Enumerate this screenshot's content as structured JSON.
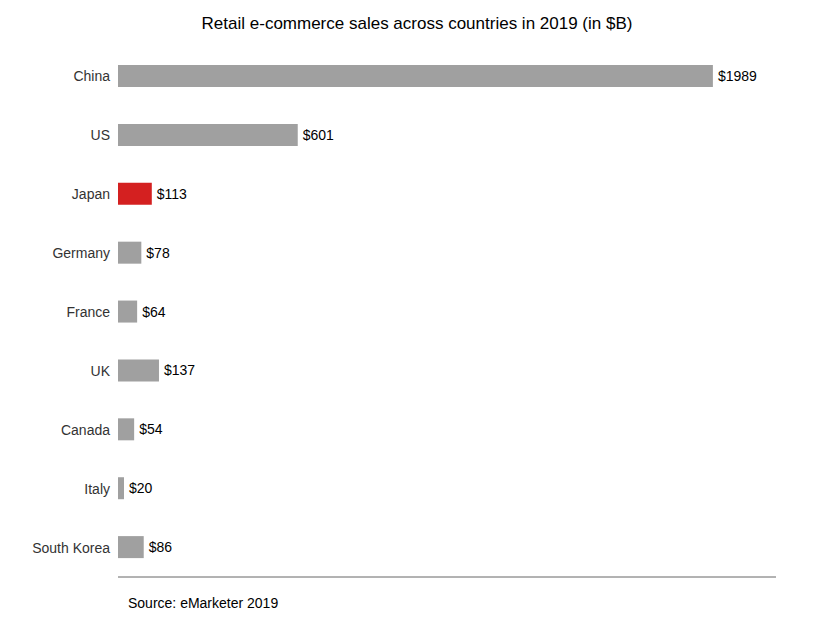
{
  "chart_data": {
    "type": "bar",
    "orientation": "horizontal",
    "title": "Retail e-commerce sales across countries in 2019 (in $B)",
    "annotations": [
      "Source: eMarketer 2019"
    ],
    "categories": [
      "China",
      "US",
      "Japan",
      "Germany",
      "France",
      "UK",
      "Canada",
      "Italy",
      "South Korea"
    ],
    "values": [
      1989,
      601,
      113,
      78,
      64,
      137,
      54,
      20,
      86
    ],
    "value_labels": [
      "$1989",
      "$601",
      "$113",
      "$78",
      "$64",
      "$137",
      "$54",
      "$20",
      "$86"
    ],
    "colors": [
      "#a0a0a0",
      "#a0a0a0",
      "#d42020",
      "#a0a0a0",
      "#a0a0a0",
      "#a0a0a0",
      "#a0a0a0",
      "#a0a0a0",
      "#a0a0a0"
    ],
    "xlim": [
      0,
      2200
    ],
    "data_labels": true,
    "tick_labels": "y",
    "grid": false
  }
}
